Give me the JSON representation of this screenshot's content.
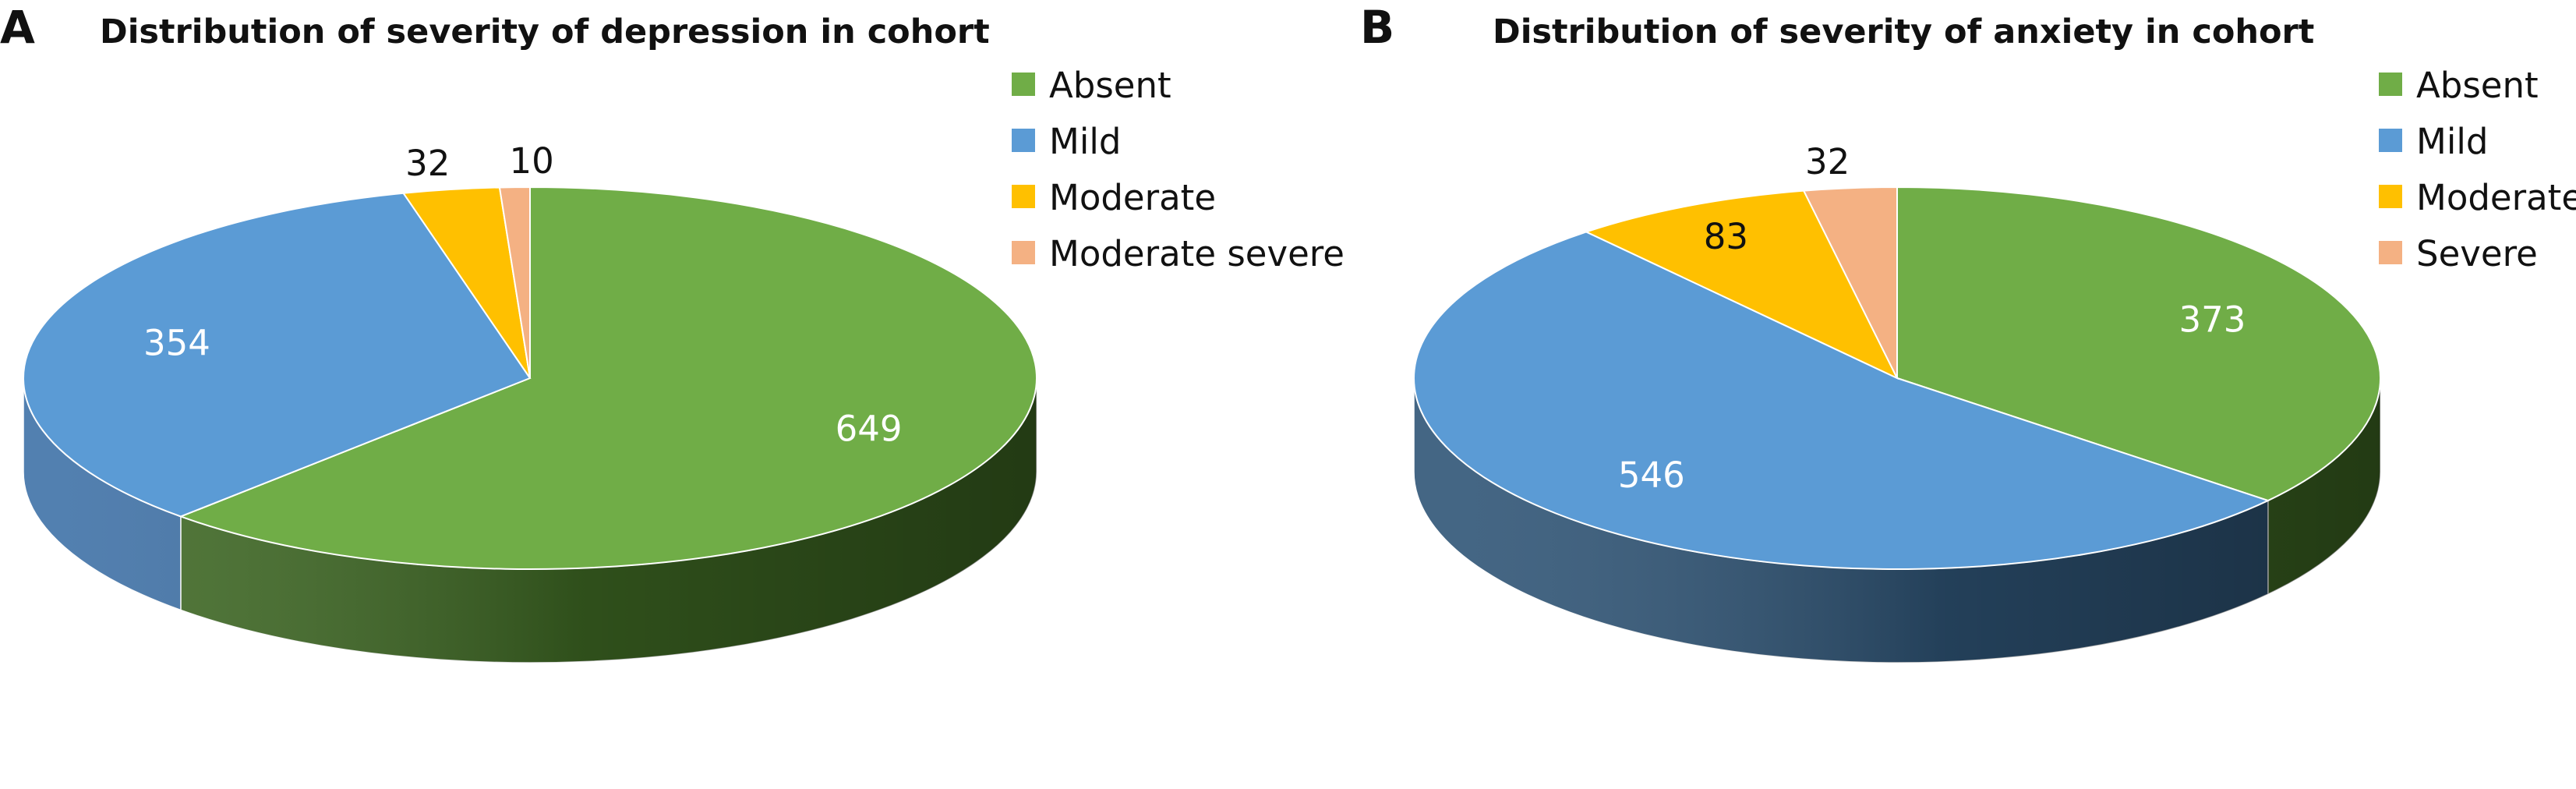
{
  "chart_data": [
    {
      "panel": "A",
      "type": "pie",
      "title": "Distribution of severity of depression in cohort",
      "categories": [
        "Absent",
        "Mild",
        "Moderate",
        "Moderate severe"
      ],
      "values": [
        649,
        354,
        32,
        10
      ],
      "colors": [
        "#70AD47",
        "#5B9BD5",
        "#FFC000",
        "#F4B183"
      ],
      "side_colors": [
        "#3F6A24",
        "#3F72A8",
        "#C99500",
        "#C98A60"
      ],
      "label_colors": [
        "#FFFFFF",
        "#FFFFFF",
        "#111111",
        "#111111"
      ],
      "legend": "right",
      "style": "3d"
    },
    {
      "panel": "B",
      "type": "pie",
      "title": "Distribution of severity of anxiety in cohort",
      "categories": [
        "Absent",
        "Mild",
        "Moderate",
        "Severe"
      ],
      "values": [
        373,
        546,
        83,
        32
      ],
      "colors": [
        "#70AD47",
        "#5B9BD5",
        "#FFC000",
        "#F4B183"
      ],
      "side_colors": [
        "#3F6A24",
        "#2F5577",
        "#C99500",
        "#C98A60"
      ],
      "label_colors": [
        "#FFFFFF",
        "#FFFFFF",
        "#111111",
        "#111111"
      ],
      "legend": "right",
      "style": "3d"
    }
  ]
}
